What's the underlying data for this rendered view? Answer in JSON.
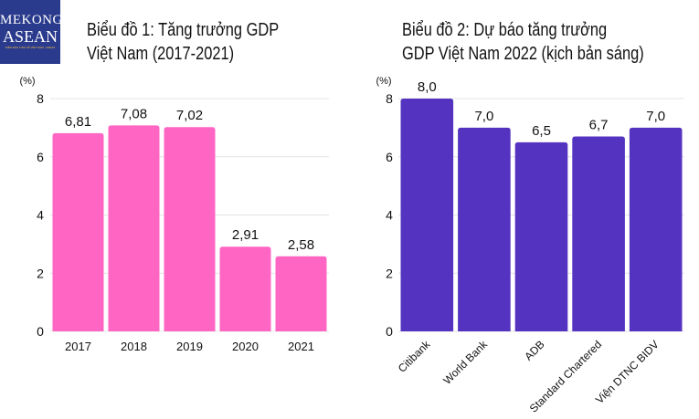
{
  "logo": {
    "line1": "MEKONG",
    "line2": "ASEAN",
    "tagline": "DIỄN ĐÀN KINH TẾ VIỆT NAM - ASEAN"
  },
  "chart_data": [
    {
      "type": "bar",
      "title_lines": [
        "Biểu đồ 1: Tăng trưởng GDP",
        "Việt Nam (2017-2021)"
      ],
      "ylabel": "(%)",
      "categories": [
        "2017",
        "2018",
        "2019",
        "2020",
        "2021"
      ],
      "values": [
        6.81,
        7.08,
        7.02,
        2.91,
        2.58
      ],
      "data_labels": [
        "6,81",
        "7,08",
        "7,02",
        "2,91",
        "2,58"
      ],
      "yticks": [
        "0",
        "2",
        "4",
        "6",
        "8"
      ],
      "ylim": [
        0,
        8
      ],
      "grid": true,
      "color": "#ff66c4"
    },
    {
      "type": "bar",
      "title_lines": [
        "Biểu đồ 2: Dự báo tăng trưởng",
        "GDP Việt Nam 2022 (kịch bản sáng)"
      ],
      "ylabel": "(%)",
      "categories": [
        "Citibank",
        "World Bank",
        "ADB",
        "Standard Chartered",
        "Viện DTNC BIDV"
      ],
      "values": [
        8.0,
        7.0,
        6.5,
        6.7,
        7.0
      ],
      "data_labels": [
        "8,0",
        "7,0",
        "6,5",
        "6,7",
        "7,0"
      ],
      "yticks": [
        "0",
        "2",
        "4",
        "6",
        "8"
      ],
      "ylim": [
        0,
        8
      ],
      "grid": true,
      "color": "#5433c0"
    }
  ]
}
